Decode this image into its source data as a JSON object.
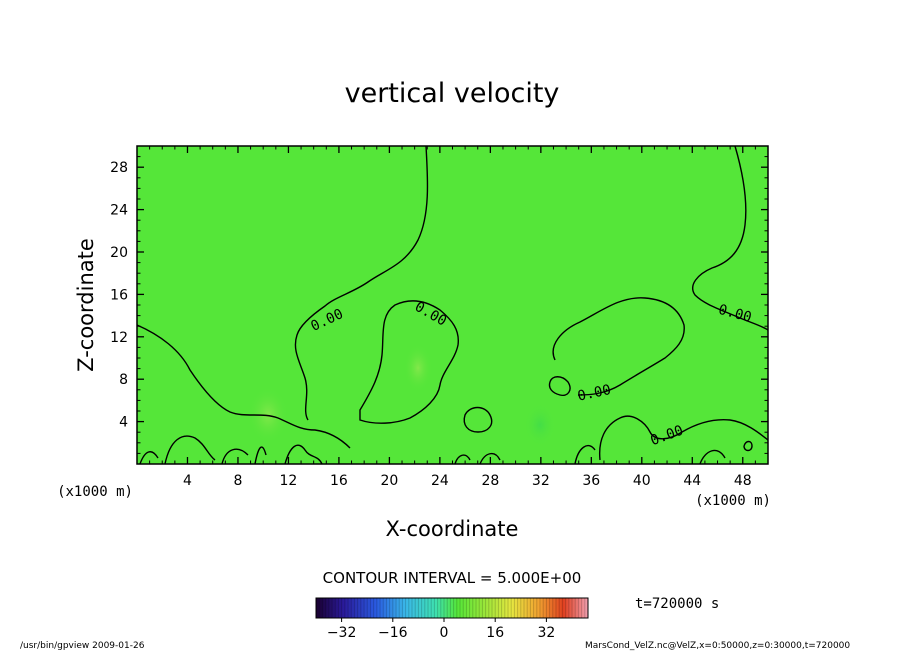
{
  "chart_data": {
    "type": "contour",
    "title": "vertical velocity",
    "xlabel": "X-coordinate",
    "ylabel": "Z-coordinate",
    "x_unit_label": "(x1000 m)",
    "y_unit_label": "(x1000 m)",
    "xlim": [
      0,
      50
    ],
    "ylim": [
      0,
      30
    ],
    "x_ticks": [
      4,
      8,
      12,
      16,
      20,
      24,
      28,
      32,
      36,
      40,
      44,
      48
    ],
    "y_ticks": [
      4,
      8,
      12,
      16,
      20,
      24,
      28
    ],
    "contour_labels": [
      {
        "text": "0.00",
        "x": 15.2,
        "y": 13.2
      },
      {
        "text": "0.00",
        "x": 23.1,
        "y": 13.8
      },
      {
        "text": "0.00",
        "x": 36.3,
        "y": 6.3
      },
      {
        "text": "0.00",
        "x": 42.1,
        "y": 2.3
      },
      {
        "text": "0.00",
        "x": 47.3,
        "y": 13.8
      }
    ],
    "contour_interval_text": "CONTOUR INTERVAL = 5.000E+00",
    "time_text": "t=720000 s",
    "colorbar": {
      "min": -40,
      "max": 45,
      "ticks": [
        -32,
        -16,
        0,
        16,
        32
      ],
      "tick_labels": [
        "−32",
        "−16",
        "0",
        "16",
        "32"
      ]
    },
    "grid": false,
    "colors": {
      "field_background": "#55e639",
      "contour_line": "#000000",
      "frame": "#000000"
    }
  },
  "footer": {
    "left": "/usr/bin/gpview   2009-01-26",
    "right": "MarsCond_VelZ.nc@VelZ,x=0:50000,z=0:30000,t=720000"
  }
}
